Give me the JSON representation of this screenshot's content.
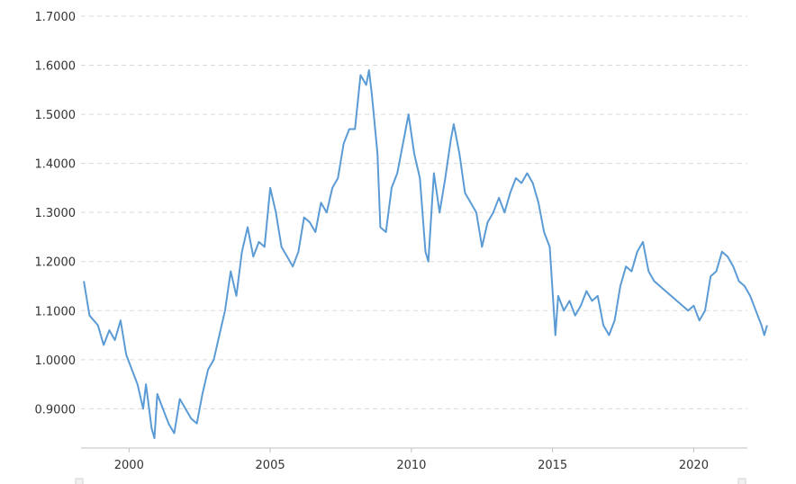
{
  "chart_data": {
    "type": "line",
    "title": "",
    "xlabel": "",
    "ylabel": "",
    "xlim": [
      1998.3,
      2021.9
    ],
    "ylim": [
      0.82,
      1.7
    ],
    "y_ticks": [
      "1.7000",
      "1.6000",
      "1.5000",
      "1.4000",
      "1.3000",
      "1.2000",
      "1.1000",
      "1.0000",
      "0.9000"
    ],
    "x_ticks": [
      "2000",
      "2005",
      "2010",
      "2015",
      "2020"
    ],
    "grid": true,
    "legend": "none",
    "line_color": "#5b9bd5",
    "series": [
      {
        "points": [
          [
            1998.4,
            1.16
          ],
          [
            1998.6,
            1.09
          ],
          [
            1998.9,
            1.07
          ],
          [
            1999.1,
            1.03
          ],
          [
            1999.3,
            1.06
          ],
          [
            1999.5,
            1.04
          ],
          [
            1999.7,
            1.08
          ],
          [
            1999.9,
            1.01
          ],
          [
            2000.1,
            0.98
          ],
          [
            2000.3,
            0.95
          ],
          [
            2000.5,
            0.9
          ],
          [
            2000.6,
            0.95
          ],
          [
            2000.8,
            0.86
          ],
          [
            2000.9,
            0.84
          ],
          [
            2001.0,
            0.93
          ],
          [
            2001.2,
            0.9
          ],
          [
            2001.4,
            0.87
          ],
          [
            2001.6,
            0.85
          ],
          [
            2001.8,
            0.92
          ],
          [
            2002.0,
            0.9
          ],
          [
            2002.2,
            0.88
          ],
          [
            2002.4,
            0.87
          ],
          [
            2002.6,
            0.93
          ],
          [
            2002.8,
            0.98
          ],
          [
            2003.0,
            1.0
          ],
          [
            2003.2,
            1.05
          ],
          [
            2003.4,
            1.1
          ],
          [
            2003.6,
            1.18
          ],
          [
            2003.8,
            1.13
          ],
          [
            2004.0,
            1.22
          ],
          [
            2004.2,
            1.27
          ],
          [
            2004.4,
            1.21
          ],
          [
            2004.6,
            1.24
          ],
          [
            2004.8,
            1.23
          ],
          [
            2005.0,
            1.35
          ],
          [
            2005.2,
            1.3
          ],
          [
            2005.4,
            1.23
          ],
          [
            2005.6,
            1.21
          ],
          [
            2005.8,
            1.19
          ],
          [
            2006.0,
            1.22
          ],
          [
            2006.2,
            1.29
          ],
          [
            2006.4,
            1.28
          ],
          [
            2006.6,
            1.26
          ],
          [
            2006.8,
            1.32
          ],
          [
            2007.0,
            1.3
          ],
          [
            2007.2,
            1.35
          ],
          [
            2007.4,
            1.37
          ],
          [
            2007.6,
            1.44
          ],
          [
            2007.8,
            1.47
          ],
          [
            2008.0,
            1.47
          ],
          [
            2008.2,
            1.58
          ],
          [
            2008.4,
            1.56
          ],
          [
            2008.5,
            1.59
          ],
          [
            2008.6,
            1.54
          ],
          [
            2008.8,
            1.42
          ],
          [
            2008.9,
            1.27
          ],
          [
            2009.1,
            1.26
          ],
          [
            2009.3,
            1.35
          ],
          [
            2009.5,
            1.38
          ],
          [
            2009.7,
            1.44
          ],
          [
            2009.9,
            1.5
          ],
          [
            2010.1,
            1.42
          ],
          [
            2010.3,
            1.37
          ],
          [
            2010.5,
            1.22
          ],
          [
            2010.6,
            1.2
          ],
          [
            2010.8,
            1.38
          ],
          [
            2011.0,
            1.3
          ],
          [
            2011.2,
            1.37
          ],
          [
            2011.4,
            1.45
          ],
          [
            2011.5,
            1.48
          ],
          [
            2011.7,
            1.42
          ],
          [
            2011.9,
            1.34
          ],
          [
            2012.1,
            1.32
          ],
          [
            2012.3,
            1.3
          ],
          [
            2012.5,
            1.23
          ],
          [
            2012.7,
            1.28
          ],
          [
            2012.9,
            1.3
          ],
          [
            2013.1,
            1.33
          ],
          [
            2013.3,
            1.3
          ],
          [
            2013.5,
            1.34
          ],
          [
            2013.7,
            1.37
          ],
          [
            2013.9,
            1.36
          ],
          [
            2014.1,
            1.38
          ],
          [
            2014.3,
            1.36
          ],
          [
            2014.5,
            1.32
          ],
          [
            2014.7,
            1.26
          ],
          [
            2014.9,
            1.23
          ],
          [
            2015.1,
            1.05
          ],
          [
            2015.2,
            1.13
          ],
          [
            2015.4,
            1.1
          ],
          [
            2015.6,
            1.12
          ],
          [
            2015.8,
            1.09
          ],
          [
            2016.0,
            1.11
          ],
          [
            2016.2,
            1.14
          ],
          [
            2016.4,
            1.12
          ],
          [
            2016.6,
            1.13
          ],
          [
            2016.8,
            1.07
          ],
          [
            2017.0,
            1.05
          ],
          [
            2017.2,
            1.08
          ],
          [
            2017.4,
            1.15
          ],
          [
            2017.6,
            1.19
          ],
          [
            2017.8,
            1.18
          ],
          [
            2018.0,
            1.22
          ],
          [
            2018.2,
            1.24
          ],
          [
            2018.4,
            1.18
          ],
          [
            2018.6,
            1.16
          ],
          [
            2018.8,
            1.15
          ],
          [
            2019.0,
            1.14
          ],
          [
            2019.2,
            1.13
          ],
          [
            2019.4,
            1.12
          ],
          [
            2019.6,
            1.11
          ],
          [
            2019.8,
            1.1
          ],
          [
            2020.0,
            1.11
          ],
          [
            2020.2,
            1.08
          ],
          [
            2020.4,
            1.1
          ],
          [
            2020.6,
            1.17
          ],
          [
            2020.8,
            1.18
          ],
          [
            2021.0,
            1.22
          ],
          [
            2021.2,
            1.21
          ],
          [
            2021.4,
            1.19
          ],
          [
            2021.6,
            1.16
          ],
          [
            2021.8,
            1.15
          ],
          [
            2022.0,
            1.13
          ],
          [
            2022.2,
            1.1
          ],
          [
            2022.4,
            1.07
          ],
          [
            2022.5,
            1.05
          ],
          [
            2022.6,
            1.07
          ]
        ]
      }
    ]
  }
}
